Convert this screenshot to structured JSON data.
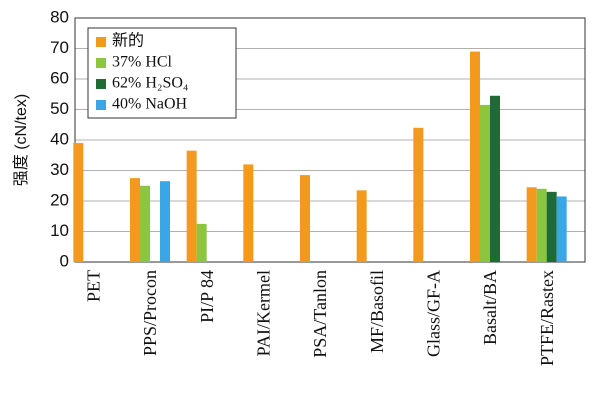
{
  "chart_data": {
    "type": "bar",
    "y_label": "强度 (cN/tex)",
    "categories": [
      "PET",
      "PPS/Procon",
      "PI/P 84",
      "PAI/Kermel",
      "PSA/Tanlon",
      "MF/Basofil",
      "Glass/GF-A",
      "Basalt/BA",
      "PTFE/Rastex"
    ],
    "series": [
      {
        "name": "新的",
        "color": "#f39a1e",
        "values": [
          39,
          27.5,
          36.5,
          32,
          28.5,
          23.5,
          44,
          69,
          24.5
        ]
      },
      {
        "name": "37% HCl",
        "color": "#8cc63f",
        "values": [
          null,
          25,
          12.5,
          null,
          null,
          null,
          null,
          51.5,
          24
        ]
      },
      {
        "name": "62% H₂SO₄",
        "color": "#1f6b35",
        "values": [
          null,
          null,
          null,
          null,
          null,
          null,
          null,
          54.5,
          23
        ]
      },
      {
        "name": "40% NaOH",
        "color": "#3aa6e8",
        "values": [
          null,
          26.5,
          null,
          null,
          null,
          null,
          null,
          null,
          21.5
        ]
      }
    ],
    "ylim": [
      0,
      80
    ],
    "yticks": [
      0,
      10,
      20,
      30,
      40,
      50,
      60,
      70,
      80
    ],
    "grid": true,
    "legend": "upper left"
  }
}
